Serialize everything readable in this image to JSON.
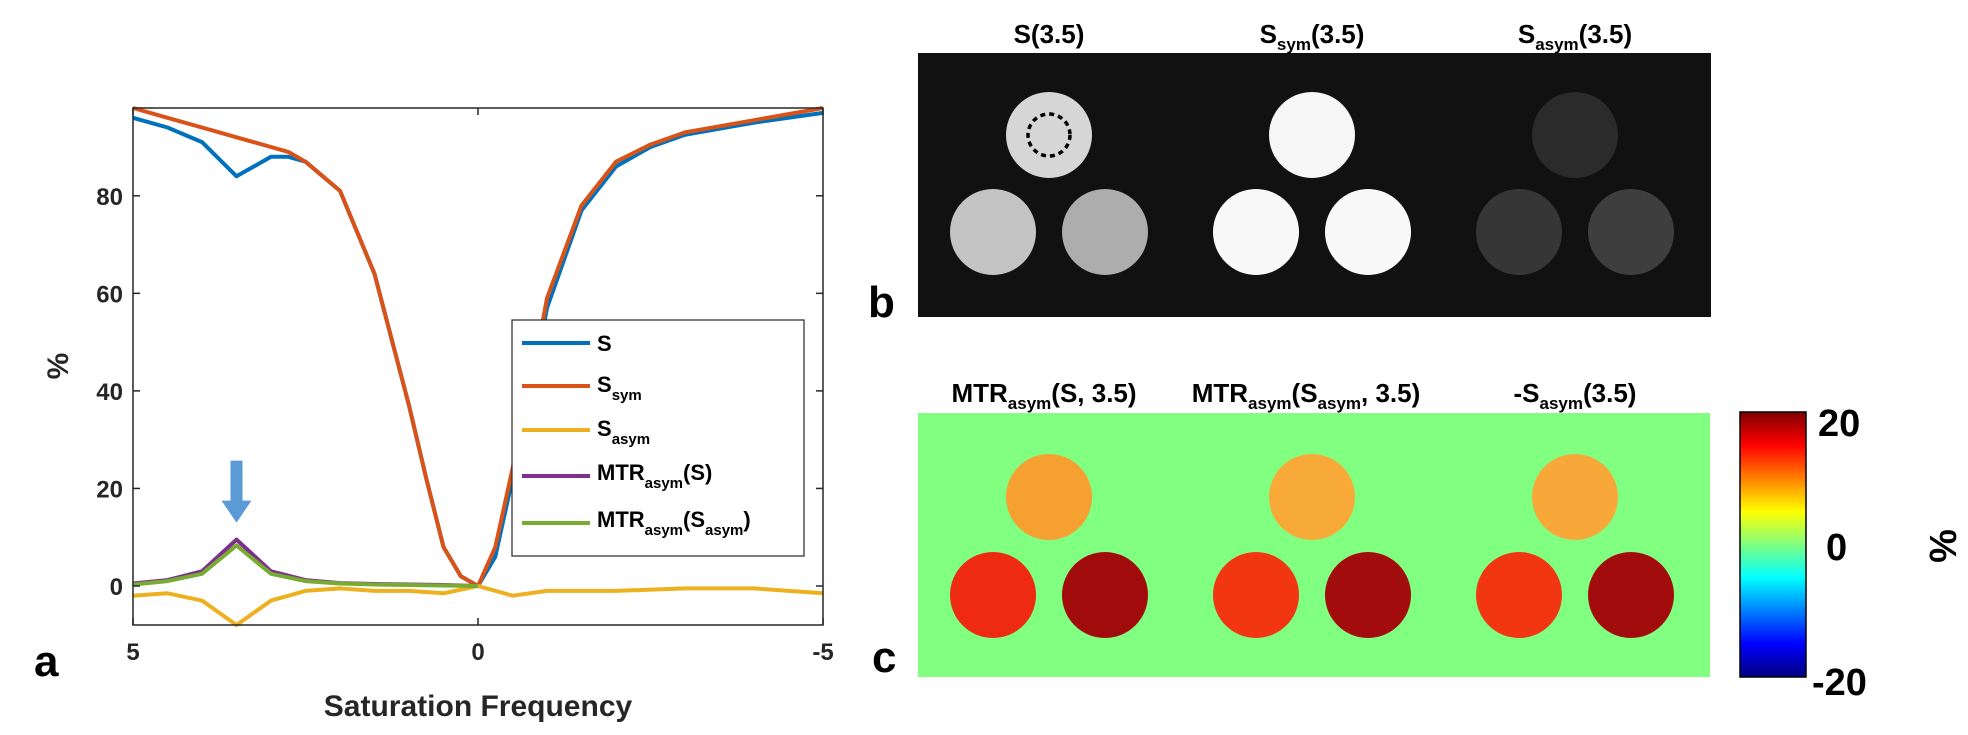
{
  "panel_a": {
    "letter": "a",
    "chart_data": {
      "type": "line",
      "xlabel": "Saturation Frequency",
      "ylabel": "%",
      "xlim": [
        5,
        -5
      ],
      "ylim": [
        -8,
        98
      ],
      "x_reversed": true,
      "xticks": [
        5,
        0,
        -5
      ],
      "xtick_labels": [
        "5",
        "0",
        "-5"
      ],
      "yticks": [
        0,
        20,
        40,
        60,
        80
      ],
      "ytick_labels": [
        "0",
        "20",
        "40",
        "60",
        "80"
      ],
      "grid": false,
      "legend_position": "center-right",
      "series": [
        {
          "name": "S",
          "color": "#0072BD",
          "x": [
            5,
            4.5,
            4,
            3.5,
            3,
            2.75,
            2.5,
            2,
            1.5,
            1,
            0.75,
            0.5,
            0.25,
            0,
            -0.25,
            -0.5,
            -0.75,
            -1,
            -1.5,
            -2,
            -2.5,
            -3,
            -4,
            -5
          ],
          "y": [
            96,
            94,
            91,
            84,
            88,
            88,
            87,
            81,
            64,
            37,
            22,
            8,
            2,
            0,
            6,
            22,
            38,
            57,
            77,
            86,
            90,
            92.5,
            95,
            97
          ]
        },
        {
          "name": "S_sym",
          "color": "#D95319",
          "x": [
            5,
            4.5,
            4,
            3.5,
            3,
            2.75,
            2.5,
            2,
            1.5,
            1,
            0.75,
            0.5,
            0.25,
            0,
            -0.25,
            -0.5,
            -0.75,
            -1,
            -1.5,
            -2,
            -2.5,
            -3,
            -4,
            -5
          ],
          "y": [
            98,
            96,
            94,
            92,
            90,
            89,
            87,
            81,
            64,
            37,
            22,
            8,
            2,
            0,
            8,
            24,
            40,
            59,
            78,
            87,
            90.5,
            93,
            95.5,
            98
          ]
        },
        {
          "name": "S_asym",
          "color": "#EDB120",
          "x": [
            5,
            4.5,
            4,
            3.5,
            3,
            2.5,
            2,
            1.5,
            1,
            0.5,
            0,
            -0.5,
            -1,
            -2,
            -3,
            -4,
            -5
          ],
          "y": [
            -2,
            -1.5,
            -3,
            -8,
            -3,
            -1,
            -0.5,
            -1,
            -1,
            -1.5,
            0,
            -2,
            -1,
            -1,
            -0.5,
            -0.5,
            -1.5
          ]
        },
        {
          "name": "MTR_asym(S)",
          "color": "#7E2F8E",
          "x": [
            5,
            4.5,
            4,
            3.5,
            3,
            2.5,
            2,
            1.5,
            1,
            0.5,
            0
          ],
          "y": [
            0.5,
            1.2,
            3,
            9.5,
            3,
            1.2,
            0.6,
            0.4,
            0.3,
            0.2,
            0
          ]
        },
        {
          "name": "MTR_asym(S_asym)",
          "color": "#77AC30",
          "x": [
            5,
            4.5,
            4,
            3.5,
            3,
            2.5,
            2,
            1.5,
            1,
            0.5,
            0
          ],
          "y": [
            0.3,
            1,
            2.5,
            8.3,
            2.5,
            1,
            0.5,
            0.3,
            0.2,
            0.1,
            0
          ]
        }
      ],
      "annotations": [
        {
          "type": "arrow",
          "x": 3.5,
          "y": 13,
          "color": "#5B9BD5"
        }
      ]
    },
    "legend": [
      {
        "main": "S",
        "sub": "",
        "tail": "",
        "tail_sub": "",
        "end": "",
        "color": "#0072BD"
      },
      {
        "main": "S",
        "sub": "sym",
        "tail": "",
        "tail_sub": "",
        "end": "",
        "color": "#D95319"
      },
      {
        "main": "S",
        "sub": "asym",
        "tail": "",
        "tail_sub": "",
        "end": "",
        "color": "#EDB120"
      },
      {
        "main": "MTR",
        "sub": "asym",
        "tail": "(S)",
        "tail_sub": "",
        "end": "",
        "color": "#7E2F8E"
      },
      {
        "main": "MTR",
        "sub": "asym",
        "tail": "(S",
        "tail_sub": "asym",
        "end": ")",
        "color": "#77AC30"
      }
    ]
  },
  "panel_b": {
    "letter": "b",
    "titles": [
      {
        "main": "S(3.5)",
        "sub": "",
        "tail": ""
      },
      {
        "main": "S",
        "sub": "sym",
        "tail": "(3.5)"
      },
      {
        "main": "S",
        "sub": "asym",
        "tail": "(3.5)"
      }
    ],
    "images": [
      {
        "top": "#d6d6d6",
        "left": "#c4c4c4",
        "right": "#adadad",
        "roi_marker": true
      },
      {
        "top": "#f6f6f6",
        "left": "#f9f9f9",
        "right": "#f9f9f9",
        "roi_marker": false
      },
      {
        "top": "#2b2b2b",
        "left": "#363636",
        "right": "#3e3e3e",
        "roi_marker": false
      }
    ],
    "background": "#111111"
  },
  "panel_c": {
    "letter": "c",
    "titles": [
      {
        "main": "MTR",
        "sub": "asym",
        "tail": "(S, 3.5)",
        "tail_sub": "",
        "end": ""
      },
      {
        "main": "MTR",
        "sub": "asym",
        "tail": "(S",
        "tail_sub": "asym",
        "end": ", 3.5)"
      },
      {
        "main": "-S",
        "sub": "asym",
        "tail": "(3.5)",
        "tail_sub": "",
        "end": ""
      }
    ],
    "images": [
      {
        "top": "#f5a030",
        "left": "#ee2a10",
        "right": "#a10b0b"
      },
      {
        "top": "#f8aa38",
        "left": "#f23612",
        "right": "#a30c0c"
      },
      {
        "top": "#f8a838",
        "left": "#f23612",
        "right": "#a30c0c"
      }
    ],
    "background": "#80ff80",
    "colorbar": {
      "max": "20",
      "mid": "0",
      "min": "-20",
      "unit": "%",
      "colormap": "jet"
    }
  }
}
